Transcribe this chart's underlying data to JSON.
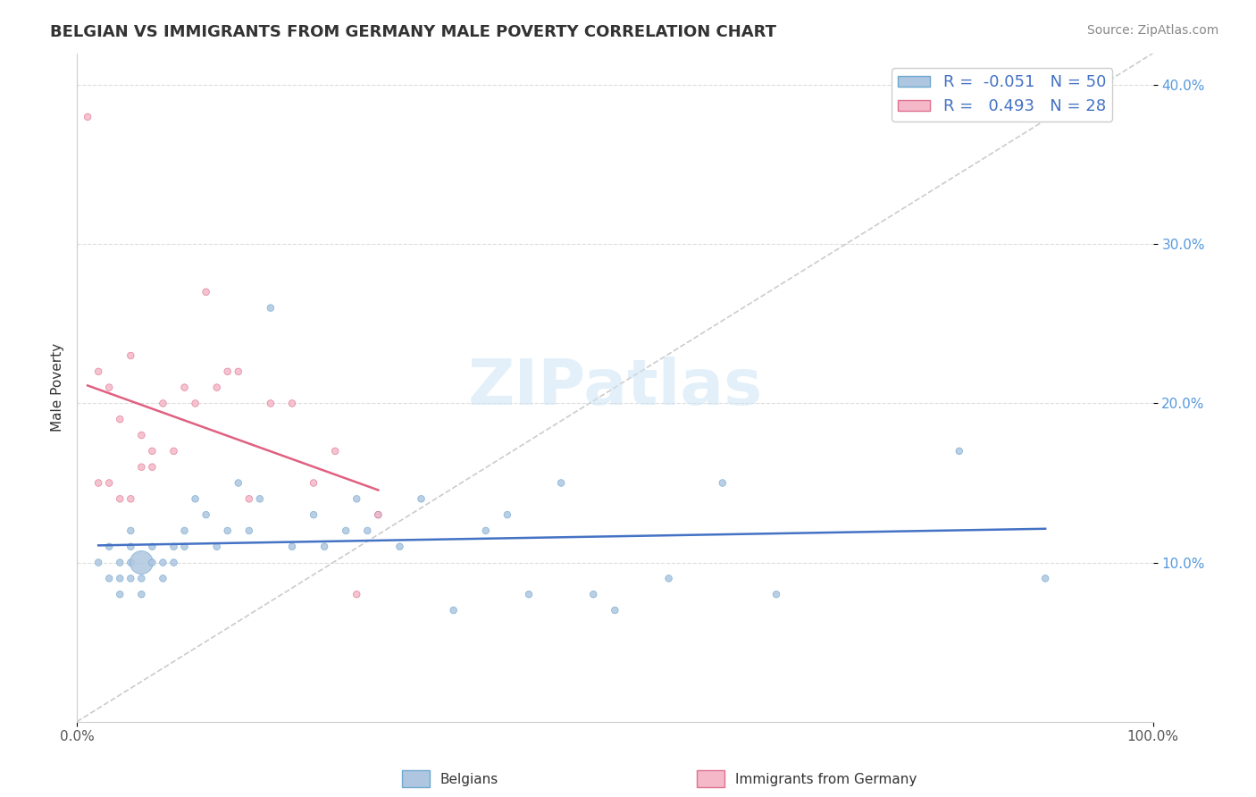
{
  "title": "BELGIAN VS IMMIGRANTS FROM GERMANY MALE POVERTY CORRELATION CHART",
  "source": "Source: ZipAtlas.com",
  "ylabel": "Male Poverty",
  "watermark": "ZIPatlas",
  "belgians_R": -0.051,
  "belgians_N": 50,
  "immigrants_R": 0.493,
  "immigrants_N": 28,
  "xlim": [
    0.0,
    1.0
  ],
  "ylim": [
    0.0,
    0.42
  ],
  "belgian_color": "#aec6e0",
  "belgian_edge": "#6fa8d0",
  "immigrant_color": "#f4b8c8",
  "immigrant_edge": "#e07090",
  "trend_blue": "#4472c4",
  "trend_pink": "#e06080",
  "diag_color": "#cccccc",
  "legend_text_color": "#4472c4",
  "belgians_x": [
    0.02,
    0.03,
    0.03,
    0.04,
    0.04,
    0.04,
    0.05,
    0.05,
    0.05,
    0.05,
    0.06,
    0.06,
    0.06,
    0.07,
    0.07,
    0.08,
    0.08,
    0.09,
    0.09,
    0.1,
    0.1,
    0.11,
    0.12,
    0.13,
    0.14,
    0.15,
    0.16,
    0.17,
    0.18,
    0.2,
    0.22,
    0.23,
    0.25,
    0.26,
    0.27,
    0.28,
    0.3,
    0.32,
    0.35,
    0.38,
    0.4,
    0.42,
    0.45,
    0.48,
    0.5,
    0.55,
    0.6,
    0.65,
    0.82,
    0.9
  ],
  "belgians_y": [
    0.1,
    0.09,
    0.11,
    0.1,
    0.09,
    0.08,
    0.11,
    0.12,
    0.1,
    0.09,
    0.1,
    0.09,
    0.08,
    0.11,
    0.1,
    0.1,
    0.09,
    0.11,
    0.1,
    0.12,
    0.11,
    0.14,
    0.13,
    0.11,
    0.12,
    0.15,
    0.12,
    0.14,
    0.26,
    0.11,
    0.13,
    0.11,
    0.12,
    0.14,
    0.12,
    0.13,
    0.11,
    0.14,
    0.07,
    0.12,
    0.13,
    0.08,
    0.15,
    0.08,
    0.07,
    0.09,
    0.15,
    0.08,
    0.17,
    0.09
  ],
  "belgians_size": [
    30,
    30,
    30,
    30,
    30,
    30,
    30,
    30,
    30,
    30,
    350,
    30,
    30,
    30,
    30,
    30,
    30,
    30,
    30,
    30,
    30,
    30,
    30,
    30,
    30,
    30,
    30,
    30,
    30,
    30,
    30,
    30,
    30,
    30,
    30,
    30,
    30,
    30,
    30,
    30,
    30,
    30,
    30,
    30,
    30,
    30,
    30,
    30,
    30,
    30
  ],
  "immigrants_x": [
    0.01,
    0.02,
    0.02,
    0.03,
    0.03,
    0.04,
    0.04,
    0.05,
    0.05,
    0.06,
    0.06,
    0.07,
    0.07,
    0.08,
    0.09,
    0.1,
    0.11,
    0.12,
    0.13,
    0.14,
    0.15,
    0.16,
    0.18,
    0.2,
    0.22,
    0.24,
    0.26,
    0.28
  ],
  "immigrants_y": [
    0.38,
    0.15,
    0.22,
    0.15,
    0.21,
    0.14,
    0.19,
    0.23,
    0.14,
    0.16,
    0.18,
    0.16,
    0.17,
    0.2,
    0.17,
    0.21,
    0.2,
    0.27,
    0.21,
    0.22,
    0.22,
    0.14,
    0.2,
    0.2,
    0.15,
    0.17,
    0.08,
    0.13
  ],
  "immigrants_size": [
    30,
    30,
    30,
    30,
    30,
    30,
    30,
    30,
    30,
    30,
    30,
    30,
    30,
    30,
    30,
    30,
    30,
    30,
    30,
    30,
    30,
    30,
    30,
    30,
    30,
    30,
    30,
    30
  ]
}
